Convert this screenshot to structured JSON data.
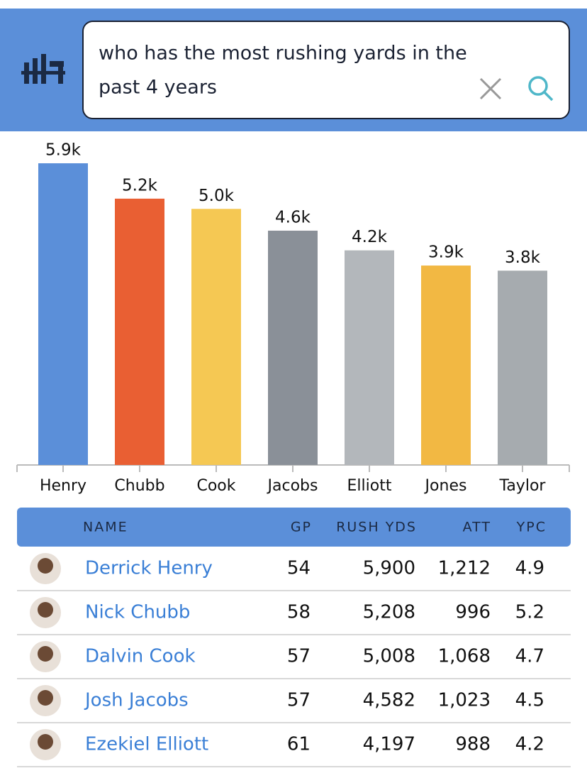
{
  "search": {
    "query_line1": "who has the most rushing yards in the",
    "query_line2": "past 4 years"
  },
  "chart_data": {
    "type": "bar",
    "categories": [
      "Henry",
      "Chubb",
      "Cook",
      "Jacobs",
      "Elliott",
      "Jones",
      "Taylor"
    ],
    "values": [
      5900,
      5208,
      5008,
      4582,
      4197,
      3900,
      3800
    ],
    "value_labels": [
      "5.9k",
      "5.2k",
      "5.0k",
      "4.6k",
      "4.2k",
      "3.9k",
      "3.8k"
    ],
    "colors": [
      "#5b8fd9",
      "#e95f33",
      "#f5c853",
      "#8a9098",
      "#b3b7bb",
      "#f2b843",
      "#a6abaf"
    ]
  },
  "table": {
    "columns": [
      "NAME",
      "GP",
      "RUSH YDS",
      "ATT",
      "YPC"
    ],
    "rows": [
      [
        "Derrick Henry",
        "54",
        "5,900",
        "1,212",
        "4.9"
      ],
      [
        "Nick Chubb",
        "58",
        "5,208",
        "996",
        "5.2"
      ],
      [
        "Dalvin Cook",
        "57",
        "5,008",
        "1,068",
        "4.7"
      ],
      [
        "Josh Jacobs",
        "57",
        "4,582",
        "1,023",
        "4.5"
      ],
      [
        "Ezekiel Elliott",
        "61",
        "4,197",
        "988",
        "4.2"
      ]
    ]
  }
}
